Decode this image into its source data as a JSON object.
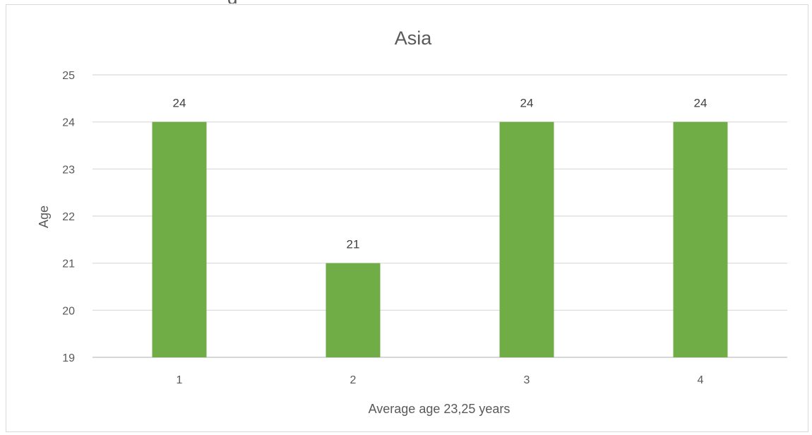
{
  "chart_data": {
    "type": "bar",
    "title": "Asia",
    "categories": [
      "1",
      "2",
      "3",
      "4"
    ],
    "values": [
      24,
      21,
      24,
      24
    ],
    "xlabel": "Average age 23,25 years",
    "ylabel": "Age",
    "ylim": [
      19,
      25
    ],
    "yticks": [
      19,
      20,
      21,
      22,
      23,
      24,
      25
    ],
    "grid": true,
    "legend": "none",
    "bar_color": "#70ad47",
    "data_labels": true
  }
}
